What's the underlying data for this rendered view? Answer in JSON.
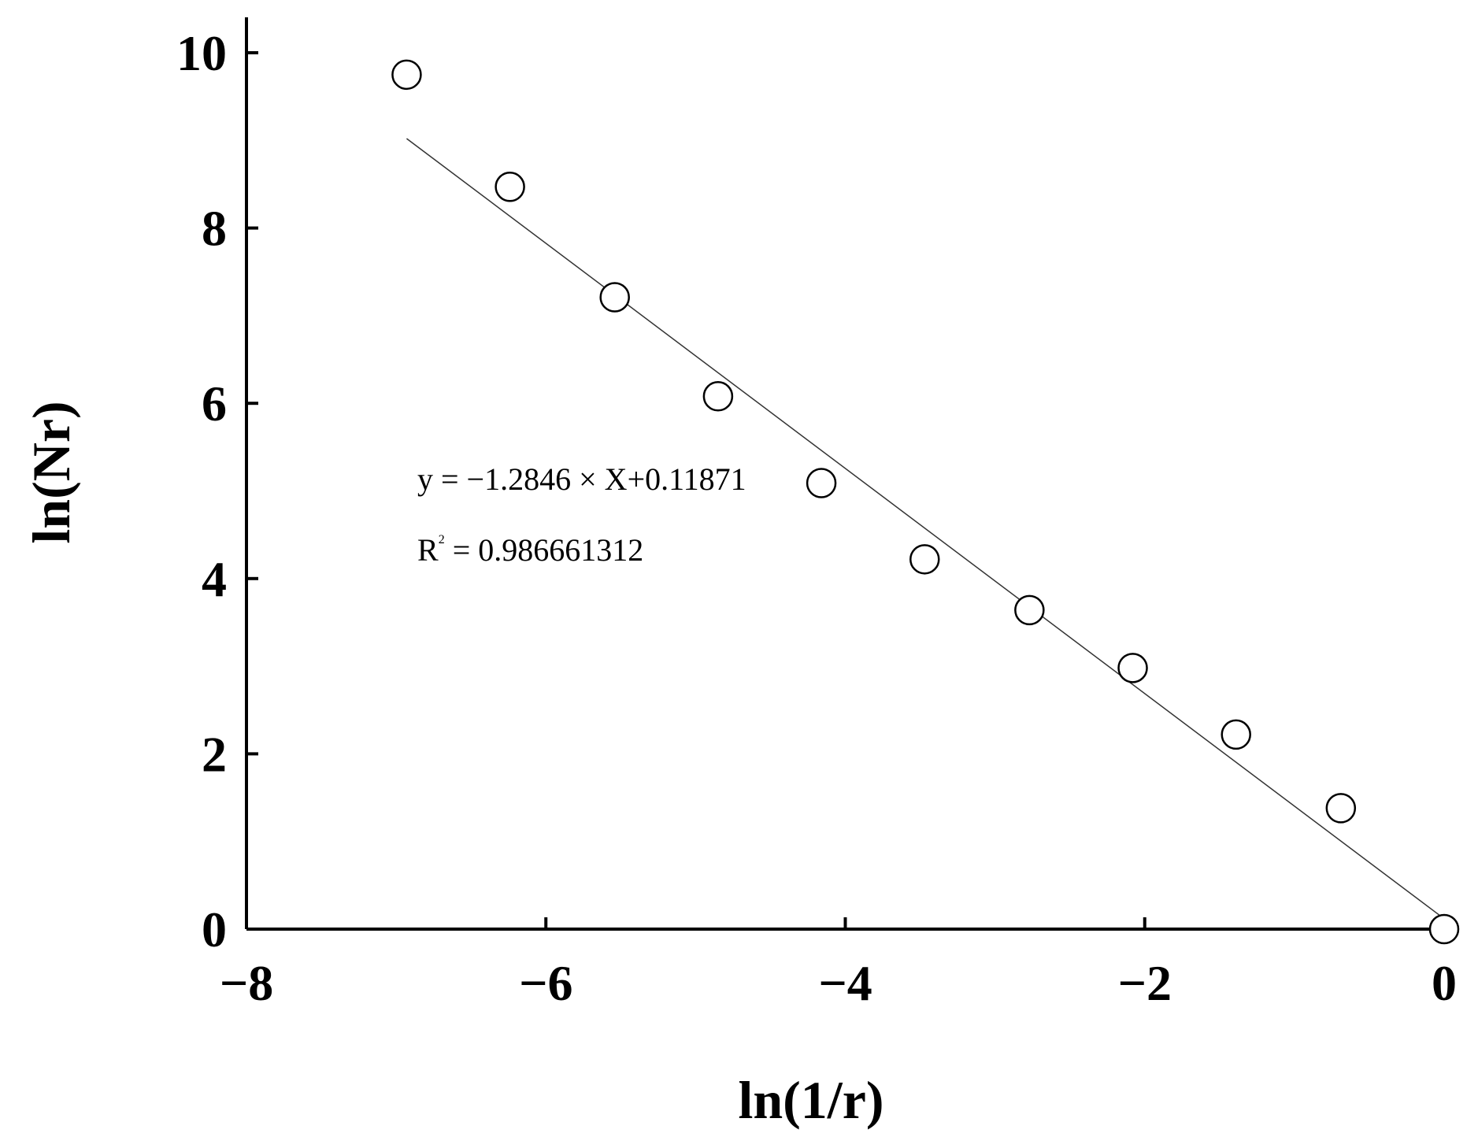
{
  "chart_data": {
    "type": "scatter",
    "xlabel": "ln(1/r)",
    "ylabel": "ln(Nr)",
    "xlim": [
      -8,
      0
    ],
    "ylim": [
      0,
      10
    ],
    "xticks": [
      -8,
      -6,
      -4,
      -2,
      0
    ],
    "yticks": [
      0,
      2,
      4,
      6,
      8,
      10
    ],
    "xtick_labels": [
      "−8",
      "−6",
      "−4",
      "−2",
      "0"
    ],
    "ytick_labels": [
      "0",
      "2",
      "4",
      "6",
      "8",
      "10"
    ],
    "grid": false,
    "series": [
      {
        "marker": "open-circle",
        "x": [
          -6.93,
          -6.24,
          -5.54,
          -4.85,
          -4.16,
          -3.47,
          -2.77,
          -2.08,
          -1.39,
          -0.69,
          0.0
        ],
        "y": [
          9.75,
          8.47,
          7.21,
          6.08,
          5.09,
          4.22,
          3.64,
          2.98,
          2.22,
          1.38,
          0.0
        ]
      }
    ],
    "fit_line": {
      "slope": -1.2846,
      "intercept": 0.11871,
      "x_range": [
        -6.93,
        0.0
      ]
    },
    "annotations": {
      "equation": "y = −1.2846 × X+0.11871",
      "r2_prefix": "R",
      "r2_sup": "2",
      "r2_value": " = 0.986661312"
    }
  }
}
